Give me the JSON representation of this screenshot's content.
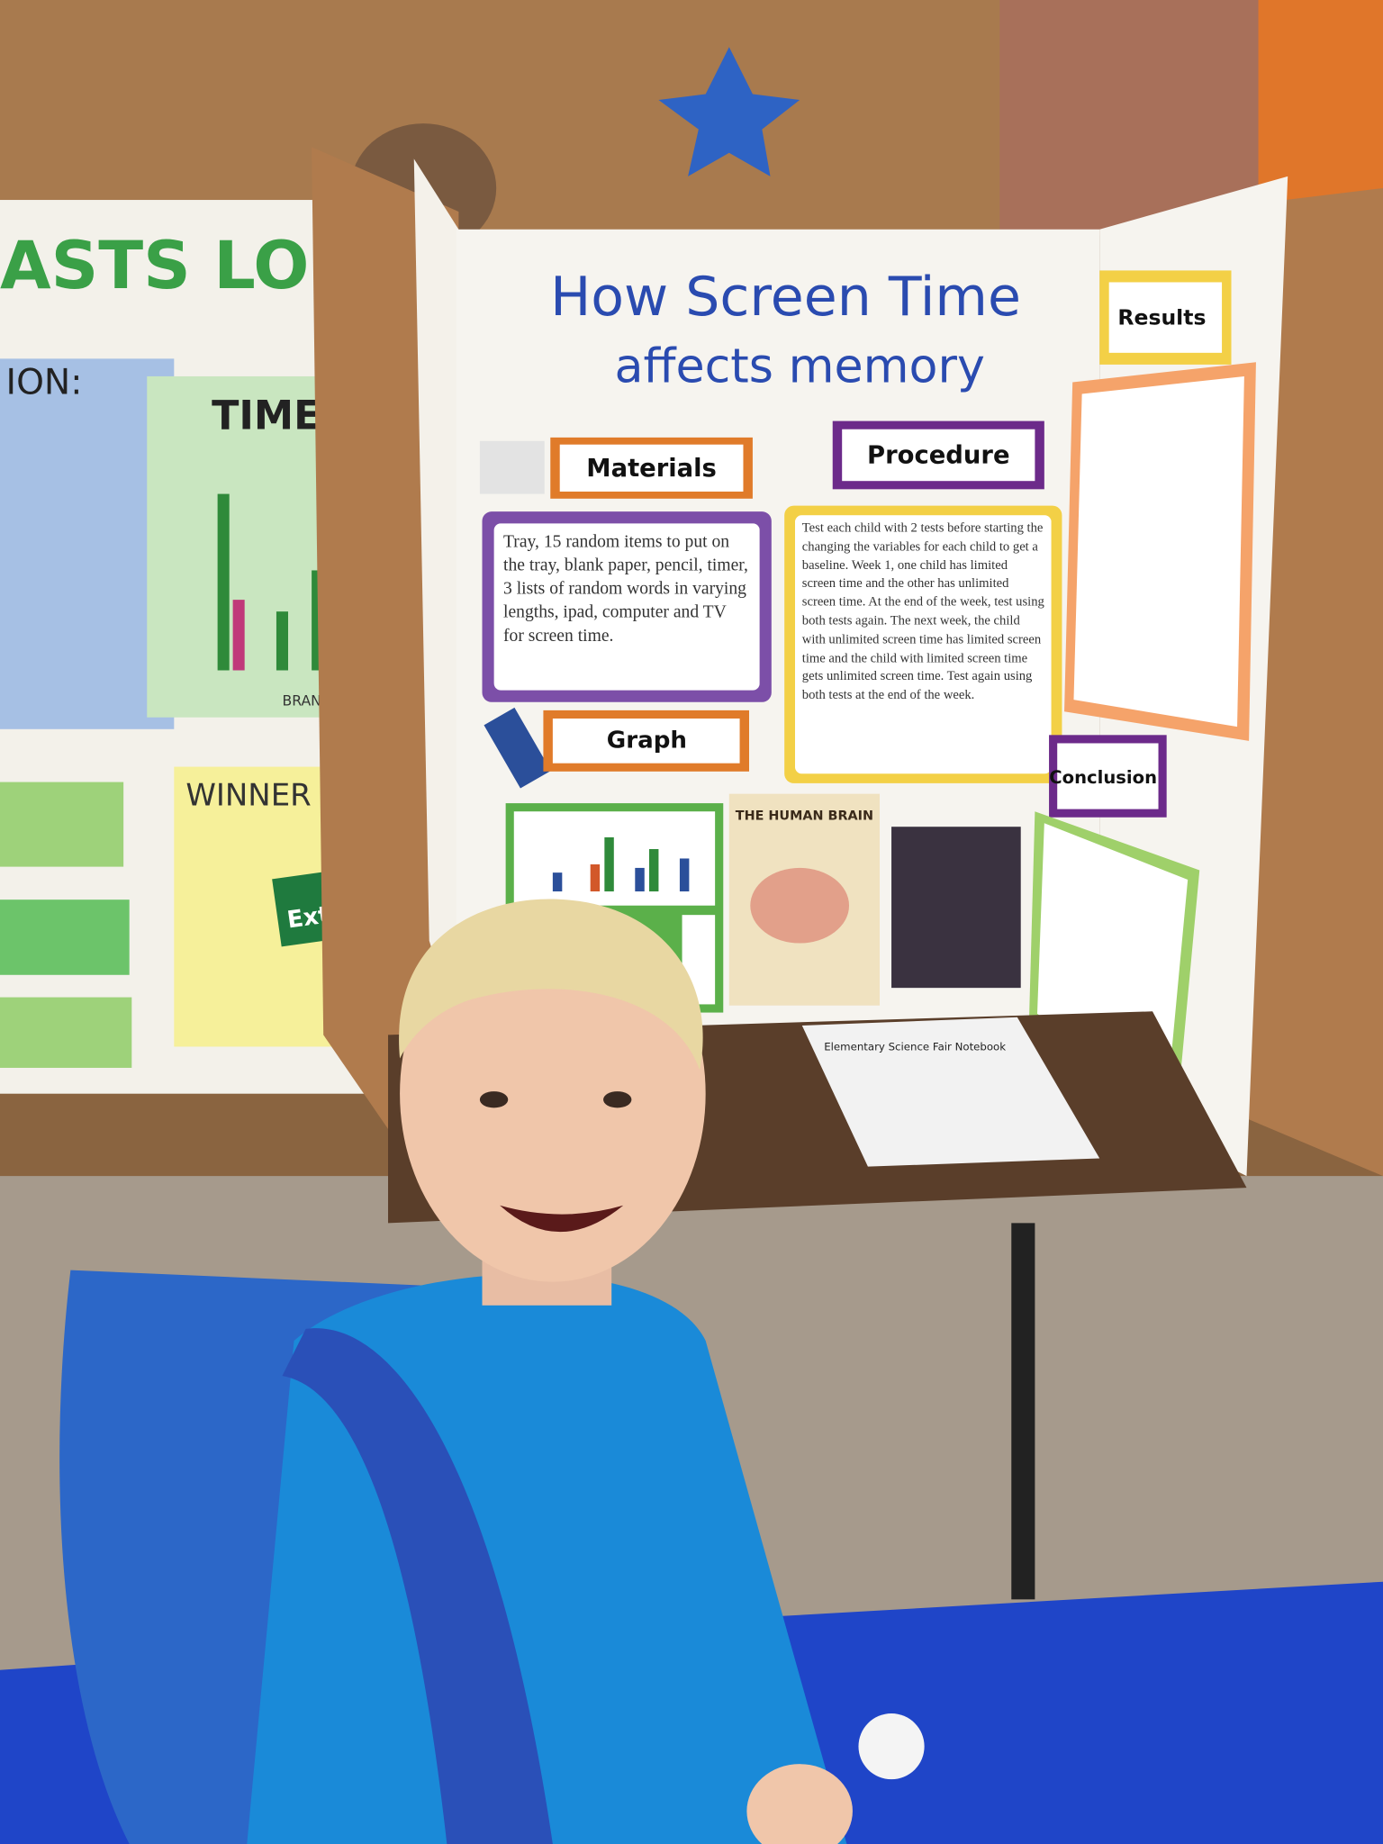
{
  "board": {
    "title": [
      "How Screen Time",
      "affects memory"
    ],
    "materials": {
      "label": "Materials",
      "text": "Tray, 15 random items to put on the tray, blank paper, pencil, timer, 3 lists of random words in varying lengths, ipad, computer and TV for screen time."
    },
    "procedure": {
      "label": "Procedure",
      "text": "Test each child with 2 tests before starting the changing the variables for each child to get a baseline. Week 1, one child has limited screen time and the other has unlimited screen time. At the end of the week, test using both tests again. The next week, the child with unlimited screen time has limited screen time and the child with limited screen time gets unlimited screen time. Test again using both tests at the end of the week."
    },
    "graph": {
      "label": "Graph"
    },
    "brain_poster": {
      "title": "THE HUMAN BRAIN"
    },
    "results": {
      "label": "Results"
    },
    "conclusion": {
      "label": "Conclusion"
    },
    "notebook": {
      "title": "Elementary Science Fair Notebook"
    }
  },
  "left_board": {
    "title": "ASTS LO",
    "heading": "ION:",
    "chart_title": "TIME",
    "chart_axis": "BRANDS",
    "winner": "WINNER",
    "gum": "Extra"
  }
}
